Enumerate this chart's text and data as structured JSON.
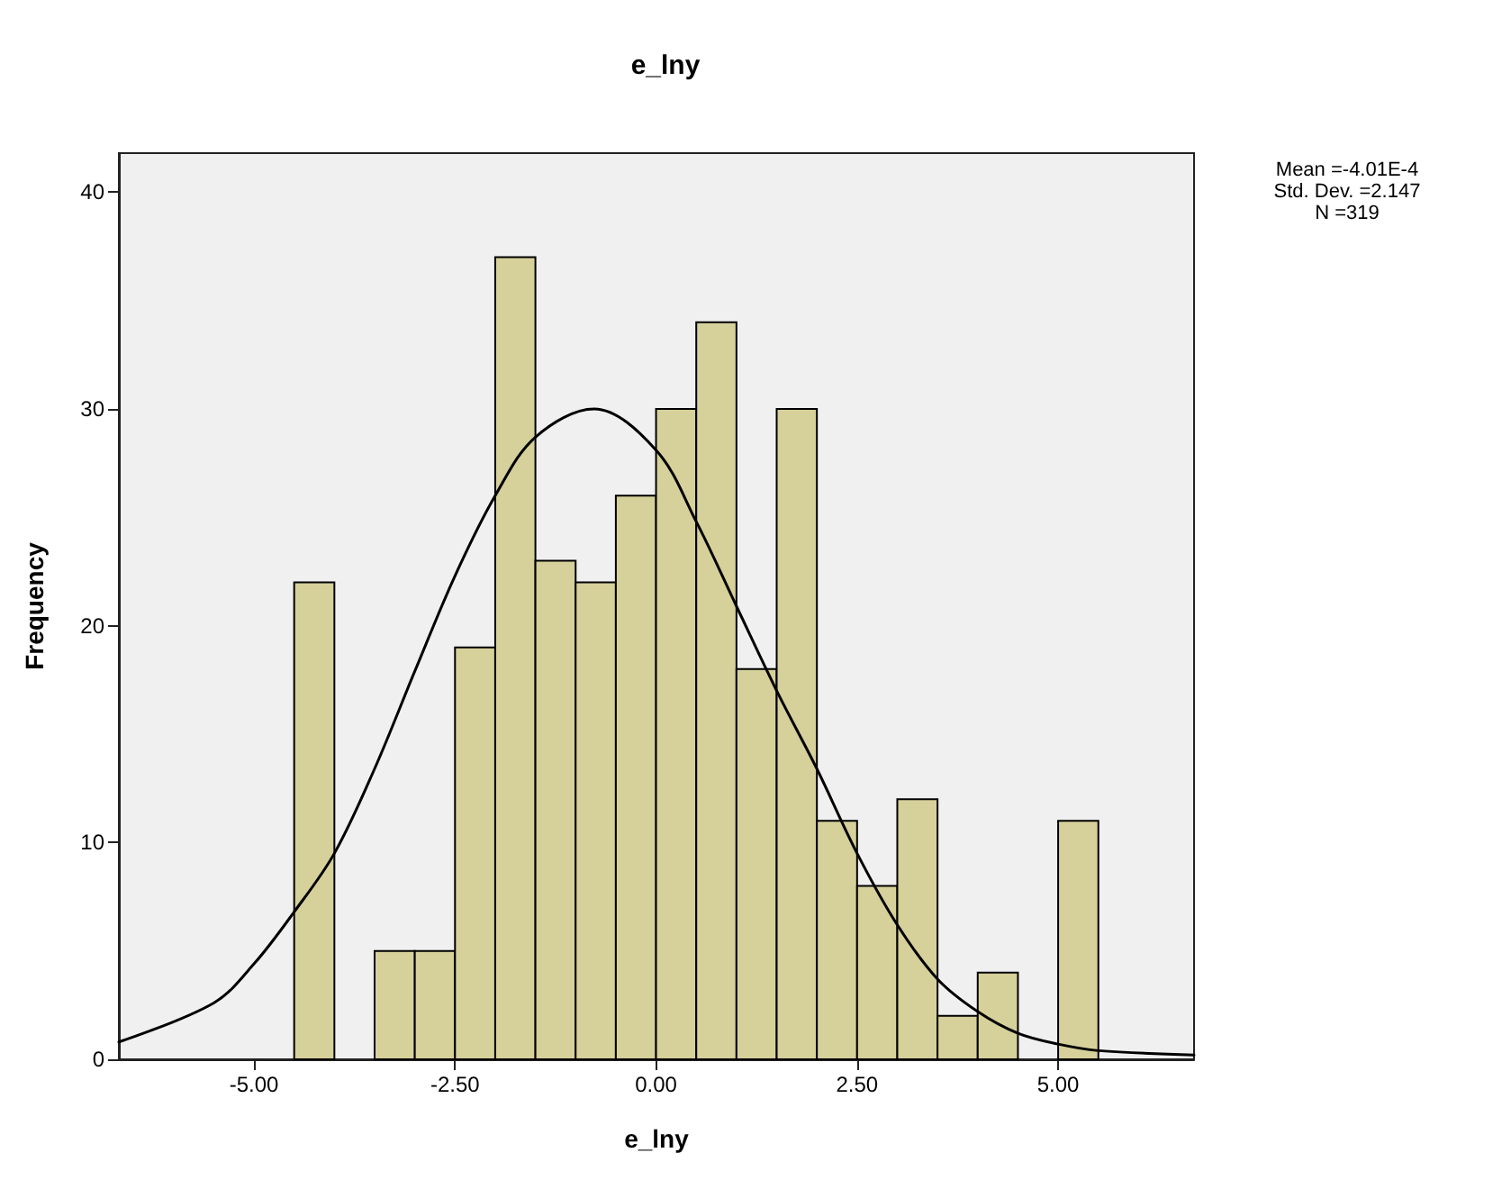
{
  "chart_data": {
    "type": "histogram",
    "title": "e_lny",
    "xlabel": "e_lny",
    "ylabel": "Frequency",
    "annotations": [
      "Mean =-4.01E-4",
      "Std. Dev. =2.147",
      "N =319"
    ],
    "xlim": [
      -6.68,
      6.69
    ],
    "ylim": [
      0,
      41.8
    ],
    "xticks": [
      {
        "value": -5,
        "label": "-5.00"
      },
      {
        "value": -2.5,
        "label": "-2.50"
      },
      {
        "value": 0,
        "label": "0.00"
      },
      {
        "value": 2.5,
        "label": "2.50"
      },
      {
        "value": 5,
        "label": "5.00"
      }
    ],
    "yticks": [
      0,
      10,
      20,
      30,
      40
    ],
    "grid": false,
    "series": [
      {
        "color": "#d6d09a",
        "bins": [
          -4.5,
          -4,
          -3.5,
          -3,
          -2.5,
          -2,
          -1.5,
          -1,
          -0.5,
          0,
          0.5,
          1,
          1.5,
          2,
          2.5,
          3,
          3.5,
          4,
          4.5,
          5,
          5.5
        ],
        "values": [
          22,
          0,
          5,
          5,
          19,
          37,
          23,
          22,
          26,
          30,
          34,
          18,
          30,
          11,
          8,
          12,
          2,
          4,
          0,
          11
        ]
      },
      {
        "type": "line",
        "color": "#000000",
        "marker": "none",
        "line_style": "solid",
        "x": [
          -6.68,
          -5.5,
          -5,
          -4.5,
          -4,
          -3.5,
          -3,
          -2.5,
          -2,
          -1.5,
          -0.77,
          0,
          0.5,
          1,
          1.5,
          2,
          2.5,
          3,
          3.5,
          4,
          4.5,
          5,
          5.5,
          6.69
        ],
        "values": [
          0.8,
          2.6,
          4.4,
          6.8,
          9.5,
          13.4,
          17.9,
          22.3,
          26,
          28.7,
          30,
          28.1,
          24.8,
          20.9,
          17,
          13.4,
          9.5,
          6.2,
          3.7,
          2.2,
          1.2,
          0.7,
          0.4,
          0.2
        ]
      }
    ]
  }
}
